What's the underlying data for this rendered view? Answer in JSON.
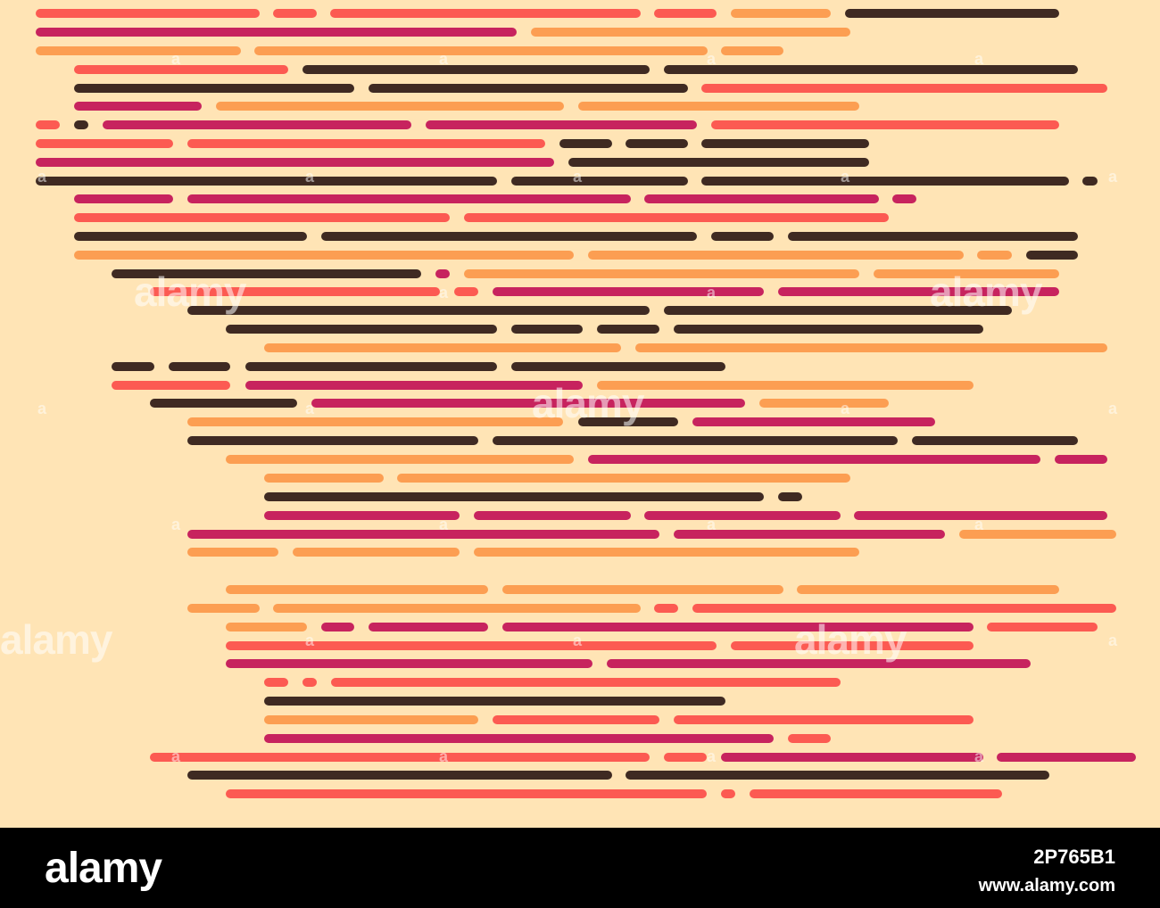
{
  "colors": {
    "background": "#ffe4b5",
    "coral": "#fc5a52",
    "orange": "#fc9e52",
    "magenta": "#c7235e",
    "brown": "#3f2a22",
    "footer_bg": "#000000",
    "footer_text": "#ffffff"
  },
  "watermark": {
    "text": "alamy",
    "small_mark": "a"
  },
  "footer": {
    "logo": "alamy",
    "image_id": "2P765B1",
    "url": "www.alamy.com"
  }
}
